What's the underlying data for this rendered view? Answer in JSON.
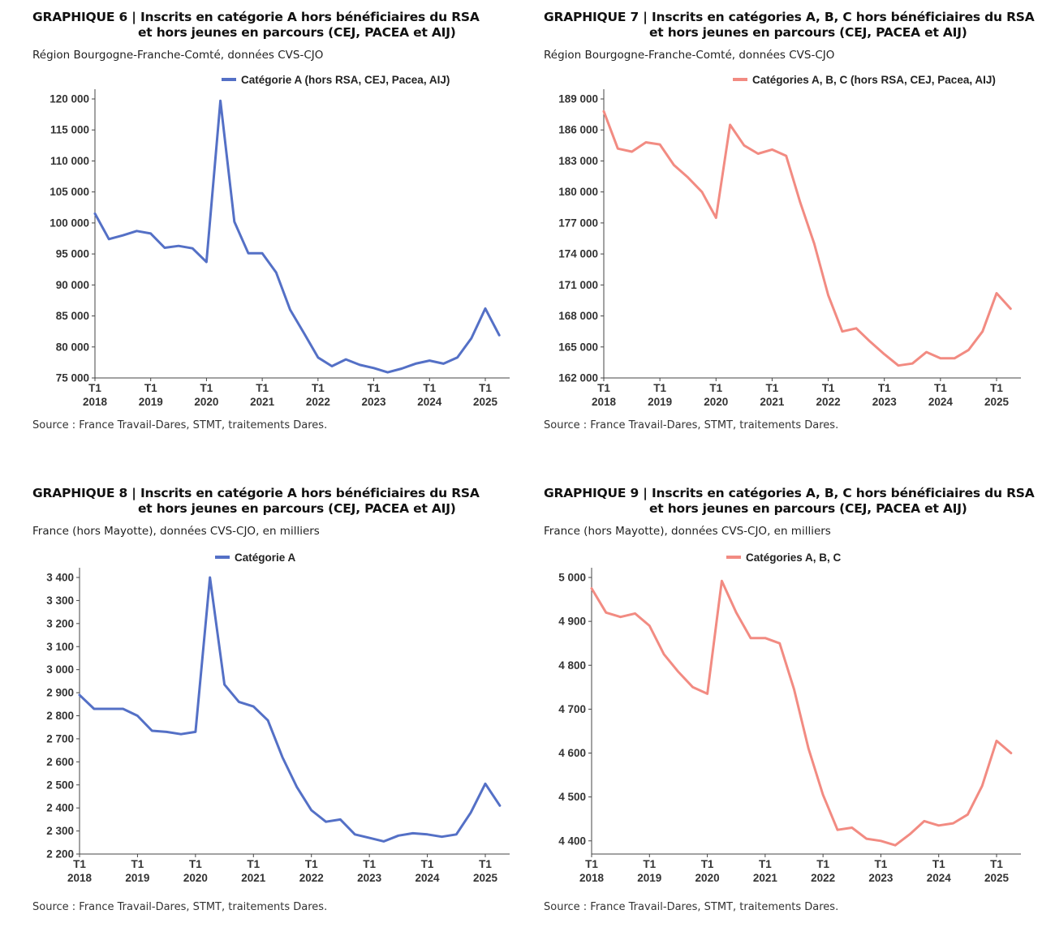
{
  "source_text": "Source : France Travail-Dares, STMT, traitements Dares.",
  "x_tick_labels": [
    "2018",
    "2019",
    "2020",
    "2021",
    "2022",
    "2023",
    "2024",
    "2025"
  ],
  "x_tick_prefix": "T1",
  "chart_data": [
    {
      "type": "line",
      "title_line1": "GRAPHIQUE 6 | Inscrits en catégorie A hors bénéficiaires du RSA",
      "title_line2": "et hors jeunes en parcours (CEJ, PACEA et AIJ)",
      "subtitle": "Région Bourgogne-Franche-Comté, données CVS-CJO",
      "series": [
        {
          "name": "Catégorie A (hors RSA, CEJ, Pacea, AIJ)",
          "color": "#5470c6",
          "values": [
            101500,
            97400,
            98000,
            98700,
            98300,
            96000,
            96300,
            95900,
            93700,
            119700,
            100200,
            95100,
            95100,
            92000,
            86000,
            82200,
            78300,
            76900,
            78000,
            77100,
            76600,
            75900,
            76500,
            77300,
            77800,
            77300,
            78300,
            81400,
            86200,
            81900
          ]
        }
      ],
      "x": [
        "2018-T1",
        "2018-T2",
        "2018-T3",
        "2018-T4",
        "2019-T1",
        "2019-T2",
        "2019-T3",
        "2019-T4",
        "2020-T1",
        "2020-T2",
        "2020-T3",
        "2020-T4",
        "2021-T1",
        "2021-T2",
        "2021-T3",
        "2021-T4",
        "2022-T1",
        "2022-T2",
        "2022-T3",
        "2022-T4",
        "2023-T1",
        "2023-T2",
        "2023-T3",
        "2023-T4",
        "2024-T1",
        "2024-T2",
        "2024-T3",
        "2024-T4",
        "2025-T1",
        "2025-T2"
      ],
      "ylim": [
        75000,
        120000
      ],
      "y_ticks": [
        75000,
        80000,
        85000,
        90000,
        95000,
        100000,
        105000,
        110000,
        115000,
        120000
      ],
      "y_tick_labels": [
        "75 000",
        "80 000",
        "85 000",
        "90 000",
        "95 000",
        "100 000",
        "105 000",
        "110 000",
        "115 000",
        "120 000"
      ]
    },
    {
      "type": "line",
      "title_line1": "GRAPHIQUE 7 | Inscrits en catégories A, B, C hors bénéficiaires du RSA",
      "title_line2": "et hors jeunes en parcours (CEJ, PACEA et AIJ)",
      "subtitle": "Région Bourgogne-Franche-Comté, données CVS-CJO",
      "series": [
        {
          "name": "Catégories A, B, C (hors RSA, CEJ, Pacea, AIJ)",
          "color": "#f28b82",
          "values": [
            187800,
            184200,
            183900,
            184800,
            184600,
            182600,
            181400,
            180000,
            177500,
            186500,
            184500,
            183700,
            184100,
            183500,
            179000,
            175000,
            170000,
            166500,
            166800,
            165500,
            164300,
            163200,
            163400,
            164500,
            163900,
            163900,
            164700,
            166500,
            170200,
            168700
          ]
        }
      ],
      "x": [
        "2018-T1",
        "2018-T2",
        "2018-T3",
        "2018-T4",
        "2019-T1",
        "2019-T2",
        "2019-T3",
        "2019-T4",
        "2020-T1",
        "2020-T2",
        "2020-T3",
        "2020-T4",
        "2021-T1",
        "2021-T2",
        "2021-T3",
        "2021-T4",
        "2022-T1",
        "2022-T2",
        "2022-T3",
        "2022-T4",
        "2023-T1",
        "2023-T2",
        "2023-T3",
        "2023-T4",
        "2024-T1",
        "2024-T2",
        "2024-T3",
        "2024-T4",
        "2025-T1",
        "2025-T2"
      ],
      "ylim": [
        162000,
        189000
      ],
      "y_ticks": [
        162000,
        165000,
        168000,
        171000,
        174000,
        177000,
        180000,
        183000,
        186000,
        189000
      ],
      "y_tick_labels": [
        "162 000",
        "165 000",
        "168 000",
        "171 000",
        "174 000",
        "177 000",
        "180 000",
        "183 000",
        "186 000",
        "189 000"
      ]
    },
    {
      "type": "line",
      "title_line1": "GRAPHIQUE 8 | Inscrits en catégorie A hors bénéficiaires du RSA",
      "title_line2": "et hors jeunes en parcours (CEJ, PACEA et AIJ)",
      "subtitle": "France (hors Mayotte), données CVS-CJO, en milliers",
      "series": [
        {
          "name": "Catégorie A",
          "color": "#5470c6",
          "values": [
            2890,
            2830,
            2830,
            2830,
            2800,
            2735,
            2730,
            2720,
            2730,
            3400,
            2935,
            2860,
            2840,
            2780,
            2620,
            2490,
            2390,
            2340,
            2350,
            2285,
            2270,
            2255,
            2280,
            2290,
            2285,
            2275,
            2285,
            2380,
            2505,
            2410
          ]
        }
      ],
      "x": [
        "2018-T1",
        "2018-T2",
        "2018-T3",
        "2018-T4",
        "2019-T1",
        "2019-T2",
        "2019-T3",
        "2019-T4",
        "2020-T1",
        "2020-T2",
        "2020-T3",
        "2020-T4",
        "2021-T1",
        "2021-T2",
        "2021-T3",
        "2021-T4",
        "2022-T1",
        "2022-T2",
        "2022-T3",
        "2022-T4",
        "2023-T1",
        "2023-T2",
        "2023-T3",
        "2023-T4",
        "2024-T1",
        "2024-T2",
        "2024-T3",
        "2024-T4",
        "2025-T1",
        "2025-T2"
      ],
      "ylim": [
        2200,
        3400
      ],
      "y_ticks": [
        2200,
        2300,
        2400,
        2500,
        2600,
        2700,
        2800,
        2900,
        3000,
        3100,
        3200,
        3300,
        3400
      ],
      "y_tick_labels": [
        "2 200",
        "2 300",
        "2 400",
        "2 500",
        "2 600",
        "2 700",
        "2 800",
        "2 900",
        "3 000",
        "3 100",
        "3 200",
        "3 300",
        "3 400"
      ]
    },
    {
      "type": "line",
      "title_line1": "GRAPHIQUE 9 | Inscrits en catégories A, B, C hors bénéficiaires du RSA",
      "title_line2": "et hors jeunes en parcours (CEJ, PACEA et AIJ)",
      "subtitle": "France (hors Mayotte), données CVS-CJO, en milliers",
      "series": [
        {
          "name": "Catégories A, B, C",
          "color": "#f28b82",
          "values": [
            4975,
            4920,
            4910,
            4918,
            4890,
            4825,
            4785,
            4750,
            4735,
            4992,
            4920,
            4862,
            4862,
            4850,
            4745,
            4610,
            4505,
            4425,
            4430,
            4405,
            4400,
            4390,
            4415,
            4445,
            4435,
            4440,
            4460,
            4525,
            4628,
            4600
          ]
        }
      ],
      "x": [
        "2018-T1",
        "2018-T2",
        "2018-T3",
        "2018-T4",
        "2019-T1",
        "2019-T2",
        "2019-T3",
        "2019-T4",
        "2020-T1",
        "2020-T2",
        "2020-T3",
        "2020-T4",
        "2021-T1",
        "2021-T2",
        "2021-T3",
        "2021-T4",
        "2022-T1",
        "2022-T2",
        "2022-T3",
        "2022-T4",
        "2023-T1",
        "2023-T2",
        "2023-T3",
        "2023-T4",
        "2024-T1",
        "2024-T2",
        "2024-T3",
        "2024-T4",
        "2025-T1",
        "2025-T2"
      ],
      "ylim": [
        4370,
        5000
      ],
      "y_ticks": [
        4400,
        4500,
        4600,
        4700,
        4800,
        4900,
        5000
      ],
      "y_tick_labels": [
        "4 400",
        "4 500",
        "4 600",
        "4 700",
        "4 800",
        "4 900",
        "5 000"
      ]
    }
  ]
}
